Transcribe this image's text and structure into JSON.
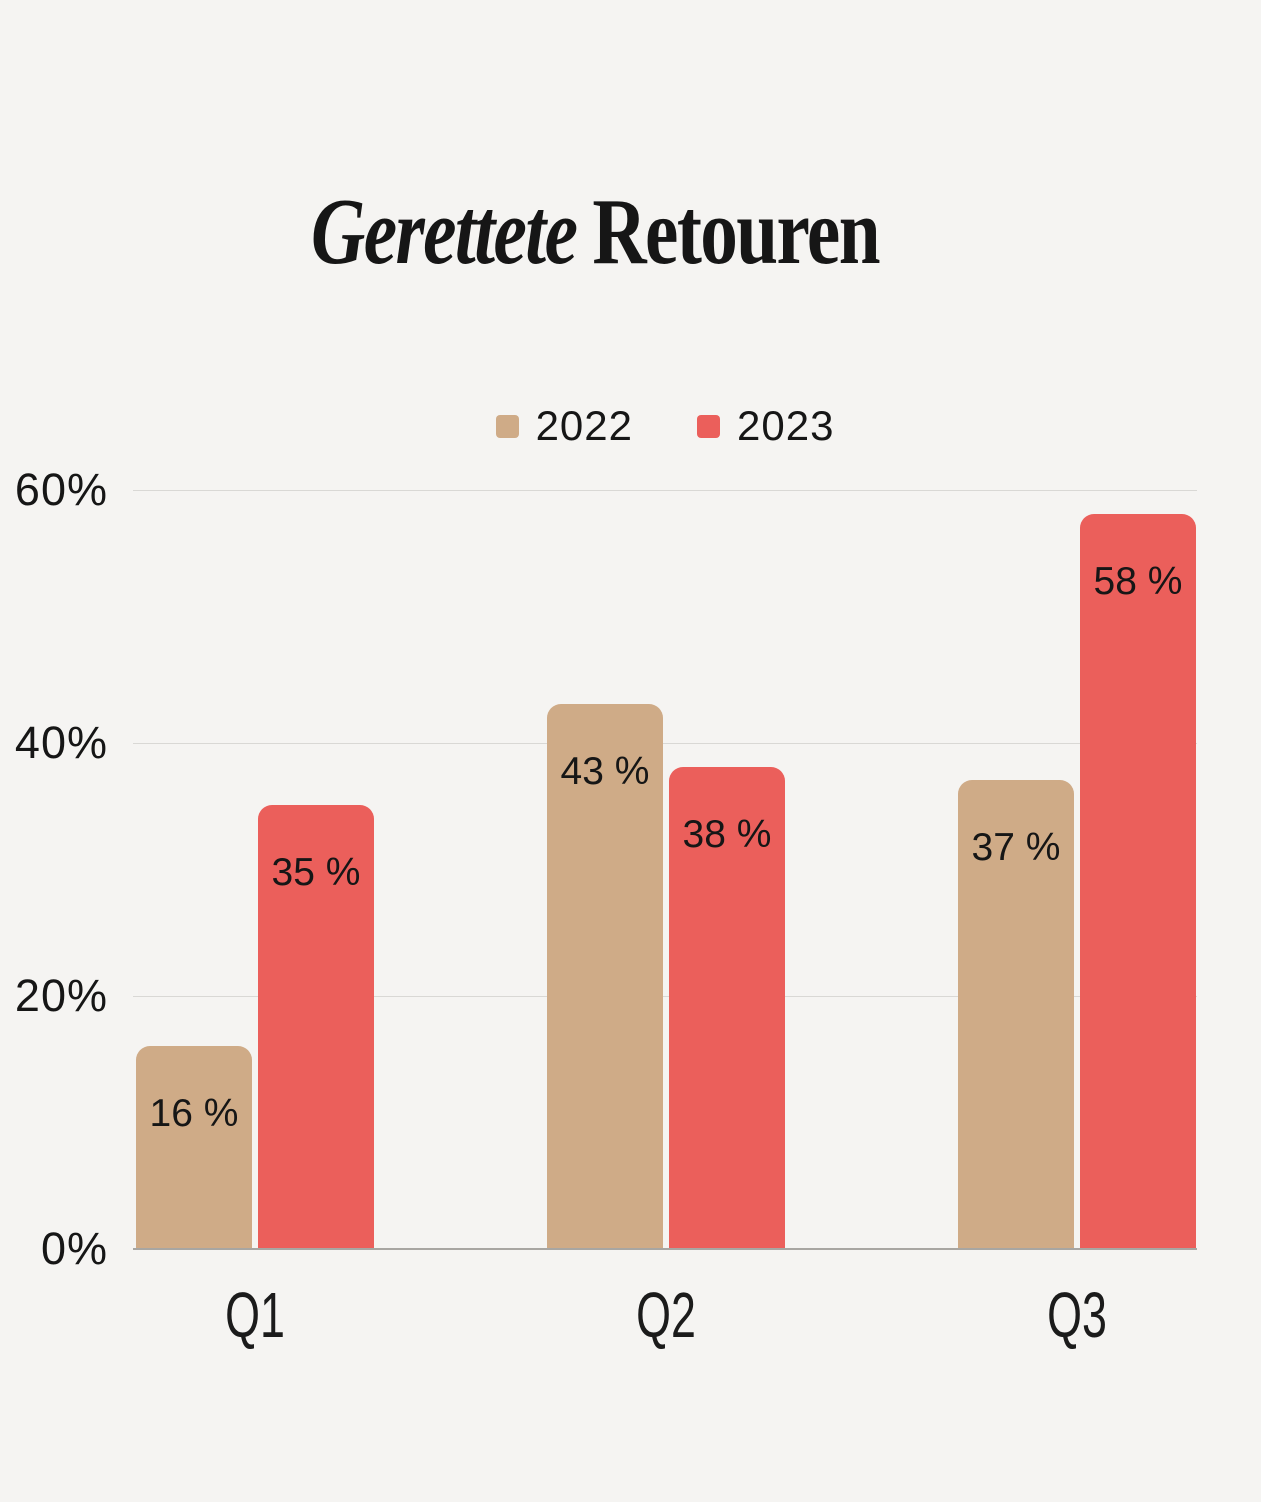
{
  "page": {
    "background_color": "#f5f4f2",
    "text_color": "#161616"
  },
  "title": {
    "italic_part": "Gerettete",
    "regular_part": "Retouren",
    "full": "Gerettete Retouren"
  },
  "legend": {
    "items": [
      {
        "label": "2022",
        "color": "#cfab87"
      },
      {
        "label": "2023",
        "color": "#eb5f5b"
      }
    ]
  },
  "chart_data": {
    "type": "bar",
    "title": "Gerettete Retouren",
    "categories": [
      "Q1",
      "Q2",
      "Q3"
    ],
    "series": [
      {
        "name": "2022",
        "color": "#cfab87",
        "values": [
          16,
          43,
          37
        ],
        "labels": [
          "16 %",
          "43 %",
          "37 %"
        ]
      },
      {
        "name": "2023",
        "color": "#eb5f5b",
        "values": [
          35,
          38,
          58
        ],
        "labels": [
          "35 %",
          "38 %",
          "58 %"
        ]
      }
    ],
    "y_axis": {
      "min": 0,
      "max": 60,
      "tick_step": 20,
      "ticks": [
        "0%",
        "20%",
        "40%",
        "60%"
      ],
      "grid": true,
      "gridline_color": "#d9d8d5",
      "axis_line_color": "#a8a6a2"
    },
    "legend_position": "top-center",
    "value_label_format": "{value} %",
    "bar_corner_radius": "rounded-top"
  }
}
